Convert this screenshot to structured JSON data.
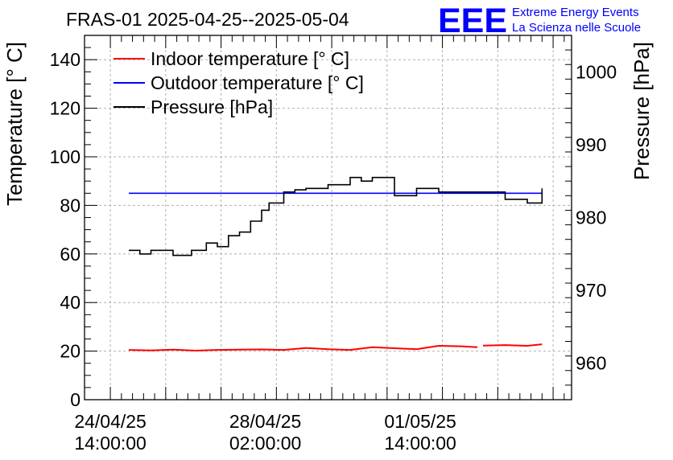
{
  "header": {
    "title": "FRAS-01 2025-04-25--2025-05-04",
    "logo_text": "EEE",
    "logo_line1": "Extreme Energy Events",
    "logo_line2": "La Scienza nelle Scuole"
  },
  "colors": {
    "indoor": "#ff0000",
    "outdoor": "#0000ff",
    "pressure": "#000000",
    "logo": "#0000ff",
    "grid": "#b0b0b0"
  },
  "chart_data": {
    "type": "line",
    "title": "FRAS-01 2025-04-25--2025-05-04",
    "ylabel": "Temperature [° C]",
    "y2label": "Pressure [hPa]",
    "ylim": [
      0,
      150
    ],
    "y2lim": [
      955,
      1005
    ],
    "grid": true,
    "legend_position": "top-left",
    "x_tick_labels": [
      {
        "date": "24/04/25",
        "time": "14:00:00"
      },
      {
        "date": "28/04/25",
        "time": "02:00:00"
      },
      {
        "date": "01/05/25",
        "time": "14:00:00"
      }
    ],
    "y_ticks": [
      0,
      20,
      40,
      60,
      80,
      100,
      120,
      140
    ],
    "y2_ticks": [
      960,
      970,
      980,
      990,
      1000
    ],
    "legend": [
      {
        "key": "indoor",
        "label": "Indoor temperature [° C]"
      },
      {
        "key": "outdoor",
        "label": "Outdoor temperature [° C]"
      },
      {
        "key": "pressure",
        "label": "Pressure [hPa]"
      }
    ],
    "series": [
      {
        "key": "indoor",
        "axis": "left",
        "x": [
          "2025-04-25 00:00",
          "2025-04-25 12:00",
          "2025-04-26 00:00",
          "2025-04-26 12:00",
          "2025-04-27 00:00",
          "2025-04-27 12:00",
          "2025-04-28 00:00",
          "2025-04-28 12:00",
          "2025-04-29 00:00",
          "2025-04-29 12:00",
          "2025-04-30 00:00",
          "2025-04-30 12:00",
          "2025-05-01 00:00",
          "2025-05-01 12:00",
          "2025-05-02 00:00",
          "2025-05-02 12:00",
          "2025-05-02 21:00"
        ],
        "values": [
          20.5,
          20.3,
          20.6,
          20.2,
          20.5,
          20.6,
          20.7,
          20.5,
          21.3,
          20.8,
          20.5,
          21.6,
          21.2,
          20.8,
          22.2,
          22.0,
          21.6
        ]
      },
      {
        "key": "indoor_tail",
        "axis": "left",
        "x": [
          "2025-05-03 00:00",
          "2025-05-03 12:00",
          "2025-05-04 00:00",
          "2025-05-04 08:00"
        ],
        "values": [
          22.3,
          22.5,
          22.2,
          22.8
        ]
      },
      {
        "key": "outdoor",
        "axis": "left",
        "x": [
          "2025-04-25 00:00",
          "2025-05-04 08:00"
        ],
        "values": [
          85.0,
          85.0
        ]
      },
      {
        "key": "pressure",
        "axis": "right",
        "x": [
          "2025-04-25 00:00",
          "2025-04-25 06:00",
          "2025-04-25 12:00",
          "2025-04-26 00:00",
          "2025-04-26 10:00",
          "2025-04-26 18:00",
          "2025-04-27 00:00",
          "2025-04-27 06:00",
          "2025-04-27 12:00",
          "2025-04-27 18:00",
          "2025-04-28 00:00",
          "2025-04-28 04:00",
          "2025-04-28 12:00",
          "2025-04-28 18:00",
          "2025-04-29 00:00",
          "2025-04-29 12:00",
          "2025-04-30 00:00",
          "2025-04-30 06:00",
          "2025-04-30 12:00",
          "2025-05-01 00:00",
          "2025-05-01 12:00",
          "2025-05-02 00:00",
          "2025-05-02 12:00",
          "2025-05-03 00:00",
          "2025-05-03 12:00",
          "2025-05-04 00:00",
          "2025-05-04 08:00"
        ],
        "values": [
          975.5,
          975.0,
          975.5,
          974.8,
          975.5,
          976.5,
          976.0,
          977.5,
          978.0,
          979.5,
          981.0,
          982.0,
          983.5,
          983.8,
          984.0,
          984.5,
          985.5,
          985.0,
          985.5,
          983.0,
          984.0,
          983.5,
          983.5,
          983.5,
          982.5,
          982.0,
          984.0
        ]
      }
    ]
  }
}
